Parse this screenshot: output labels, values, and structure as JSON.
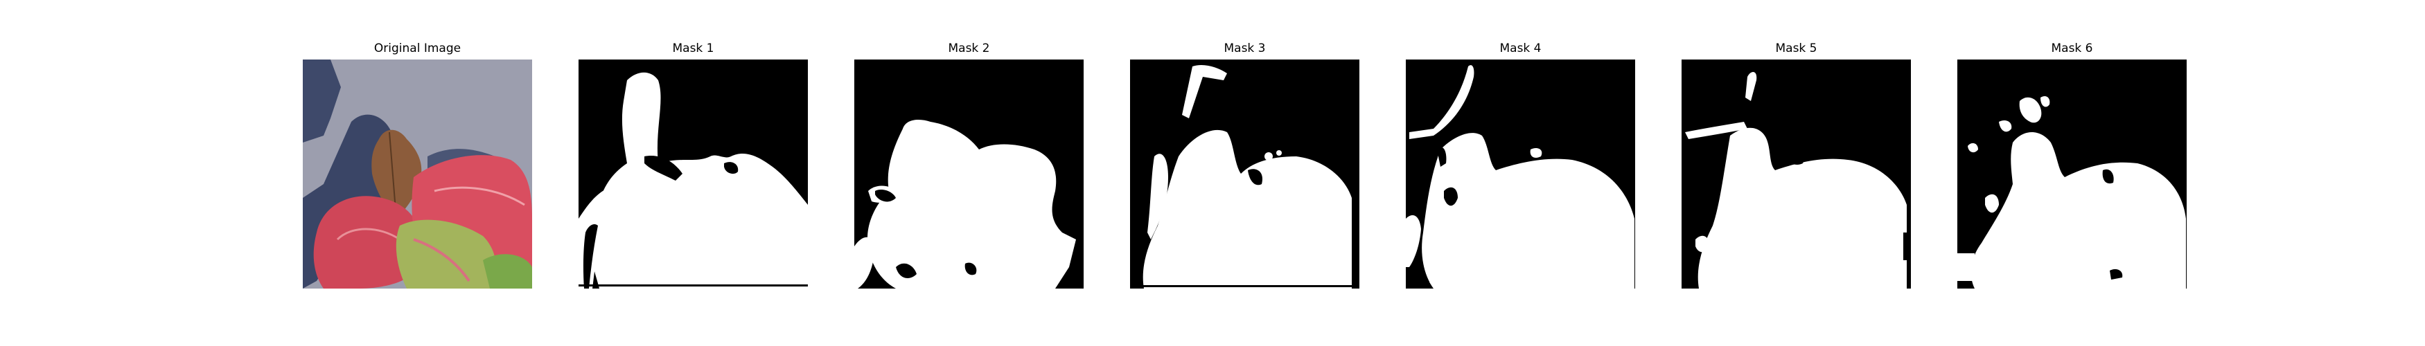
{
  "figure": {
    "panels": [
      {
        "title": "Original Image",
        "kind": "photo"
      },
      {
        "title": "Mask 1",
        "kind": "mask"
      },
      {
        "title": "Mask 2",
        "kind": "mask"
      },
      {
        "title": "Mask 3",
        "kind": "mask"
      },
      {
        "title": "Mask 4",
        "kind": "mask"
      },
      {
        "title": "Mask 5",
        "kind": "mask"
      },
      {
        "title": "Mask 6",
        "kind": "mask"
      }
    ]
  },
  "colors": {
    "background": "#ffffff",
    "mask_bg": "#000000",
    "mask_fg": "#ffffff",
    "photo_bg": "#9a9cac",
    "shadow": "#3f4a6a",
    "leaf_red": "#d2485a",
    "leaf_pink": "#e07a86",
    "leaf_green": "#8fb35a",
    "leaf_brown": "#8a5a3a"
  }
}
